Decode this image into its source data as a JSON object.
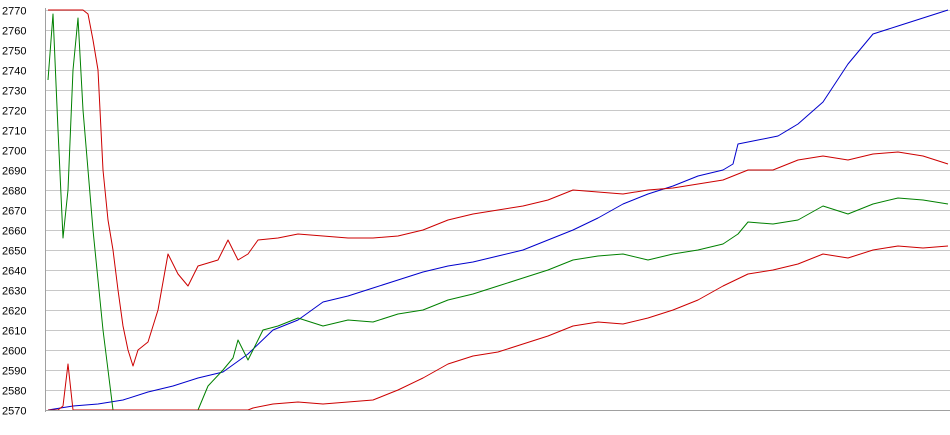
{
  "chart_data": {
    "type": "line",
    "title": "",
    "xlabel": "",
    "ylabel": "",
    "ylim": [
      2570,
      2770
    ],
    "yticks": [
      2570,
      2580,
      2590,
      2600,
      2610,
      2620,
      2630,
      2640,
      2650,
      2660,
      2670,
      2680,
      2690,
      2700,
      2710,
      2720,
      2730,
      2740,
      2750,
      2760,
      2770
    ],
    "grid": true,
    "legend": "none",
    "x_points": 180,
    "series": [
      {
        "color": "#0000cc",
        "values": [
          [
            0,
            2570
          ],
          [
            5,
            2572
          ],
          [
            10,
            2573
          ],
          [
            15,
            2575
          ],
          [
            20,
            2579
          ],
          [
            25,
            2582
          ],
          [
            30,
            2586
          ],
          [
            35,
            2589
          ],
          [
            40,
            2598
          ],
          [
            45,
            2610
          ],
          [
            50,
            2615
          ],
          [
            55,
            2624
          ],
          [
            60,
            2627
          ],
          [
            65,
            2631
          ],
          [
            70,
            2635
          ],
          [
            75,
            2639
          ],
          [
            80,
            2642
          ],
          [
            85,
            2644
          ],
          [
            90,
            2647
          ],
          [
            95,
            2650
          ],
          [
            100,
            2655
          ],
          [
            105,
            2660
          ],
          [
            110,
            2666
          ],
          [
            115,
            2673
          ],
          [
            120,
            2678
          ],
          [
            125,
            2682
          ],
          [
            130,
            2687
          ],
          [
            135,
            2690
          ],
          [
            137,
            2693
          ],
          [
            138,
            2703
          ],
          [
            142,
            2705
          ],
          [
            146,
            2707
          ],
          [
            150,
            2713
          ],
          [
            155,
            2724
          ],
          [
            160,
            2743
          ],
          [
            165,
            2758
          ],
          [
            170,
            2762
          ],
          [
            175,
            2766
          ],
          [
            180,
            2770
          ]
        ]
      },
      {
        "color": "#008000",
        "values": [
          [
            0,
            2735
          ],
          [
            1,
            2768
          ],
          [
            2,
            2710
          ],
          [
            3,
            2656
          ],
          [
            4,
            2680
          ],
          [
            5,
            2740
          ],
          [
            6,
            2766
          ],
          [
            7,
            2720
          ],
          [
            8,
            2690
          ],
          [
            9,
            2660
          ],
          [
            10,
            2635
          ],
          [
            11,
            2610
          ],
          [
            12,
            2590
          ],
          [
            13,
            2570
          ],
          [
            25,
            2570
          ],
          [
            30,
            2570
          ],
          [
            32,
            2582
          ],
          [
            35,
            2590
          ],
          [
            37,
            2596
          ],
          [
            38,
            2605
          ],
          [
            40,
            2595
          ],
          [
            43,
            2610
          ],
          [
            46,
            2612
          ],
          [
            50,
            2616
          ],
          [
            55,
            2612
          ],
          [
            60,
            2615
          ],
          [
            65,
            2614
          ],
          [
            70,
            2618
          ],
          [
            75,
            2620
          ],
          [
            80,
            2625
          ],
          [
            85,
            2628
          ],
          [
            90,
            2632
          ],
          [
            95,
            2636
          ],
          [
            100,
            2640
          ],
          [
            105,
            2645
          ],
          [
            110,
            2647
          ],
          [
            115,
            2648
          ],
          [
            120,
            2645
          ],
          [
            125,
            2648
          ],
          [
            130,
            2650
          ],
          [
            135,
            2653
          ],
          [
            138,
            2658
          ],
          [
            140,
            2664
          ],
          [
            145,
            2663
          ],
          [
            150,
            2665
          ],
          [
            155,
            2672
          ],
          [
            160,
            2668
          ],
          [
            165,
            2673
          ],
          [
            170,
            2676
          ],
          [
            175,
            2675
          ],
          [
            180,
            2673
          ]
        ]
      },
      {
        "color": "#cc0000",
        "values": [
          [
            0,
            2770
          ],
          [
            7,
            2770
          ],
          [
            8,
            2768
          ],
          [
            9,
            2755
          ],
          [
            10,
            2740
          ],
          [
            11,
            2690
          ],
          [
            12,
            2665
          ],
          [
            13,
            2650
          ],
          [
            14,
            2630
          ],
          [
            15,
            2612
          ],
          [
            16,
            2600
          ],
          [
            17,
            2592
          ],
          [
            18,
            2600
          ],
          [
            20,
            2604
          ],
          [
            22,
            2620
          ],
          [
            24,
            2648
          ],
          [
            26,
            2638
          ],
          [
            28,
            2632
          ],
          [
            30,
            2642
          ],
          [
            34,
            2645
          ],
          [
            36,
            2655
          ],
          [
            38,
            2645
          ],
          [
            40,
            2648
          ],
          [
            42,
            2655
          ],
          [
            46,
            2656
          ],
          [
            50,
            2658
          ],
          [
            55,
            2657
          ],
          [
            60,
            2656
          ],
          [
            65,
            2656
          ],
          [
            70,
            2657
          ],
          [
            75,
            2660
          ],
          [
            80,
            2665
          ],
          [
            85,
            2668
          ],
          [
            90,
            2670
          ],
          [
            95,
            2672
          ],
          [
            100,
            2675
          ],
          [
            105,
            2680
          ],
          [
            110,
            2679
          ],
          [
            115,
            2678
          ],
          [
            120,
            2680
          ],
          [
            125,
            2681
          ],
          [
            130,
            2683
          ],
          [
            135,
            2685
          ],
          [
            140,
            2690
          ],
          [
            145,
            2690
          ],
          [
            150,
            2695
          ],
          [
            155,
            2697
          ],
          [
            160,
            2695
          ],
          [
            165,
            2698
          ],
          [
            170,
            2699
          ],
          [
            175,
            2697
          ],
          [
            180,
            2693
          ]
        ]
      },
      {
        "color": "#cc0000",
        "values": [
          [
            0,
            2570
          ],
          [
            2,
            2570
          ],
          [
            3,
            2572
          ],
          [
            4,
            2593
          ],
          [
            5,
            2570
          ],
          [
            40,
            2570
          ],
          [
            41,
            2571
          ],
          [
            45,
            2573
          ],
          [
            50,
            2574
          ],
          [
            55,
            2573
          ],
          [
            60,
            2574
          ],
          [
            65,
            2575
          ],
          [
            70,
            2580
          ],
          [
            75,
            2586
          ],
          [
            80,
            2593
          ],
          [
            85,
            2597
          ],
          [
            90,
            2599
          ],
          [
            95,
            2603
          ],
          [
            100,
            2607
          ],
          [
            105,
            2612
          ],
          [
            110,
            2614
          ],
          [
            115,
            2613
          ],
          [
            120,
            2616
          ],
          [
            125,
            2620
          ],
          [
            130,
            2625
          ],
          [
            135,
            2632
          ],
          [
            140,
            2638
          ],
          [
            145,
            2640
          ],
          [
            150,
            2643
          ],
          [
            155,
            2648
          ],
          [
            160,
            2646
          ],
          [
            165,
            2650
          ],
          [
            170,
            2652
          ],
          [
            175,
            2651
          ],
          [
            180,
            2652
          ]
        ]
      }
    ]
  }
}
